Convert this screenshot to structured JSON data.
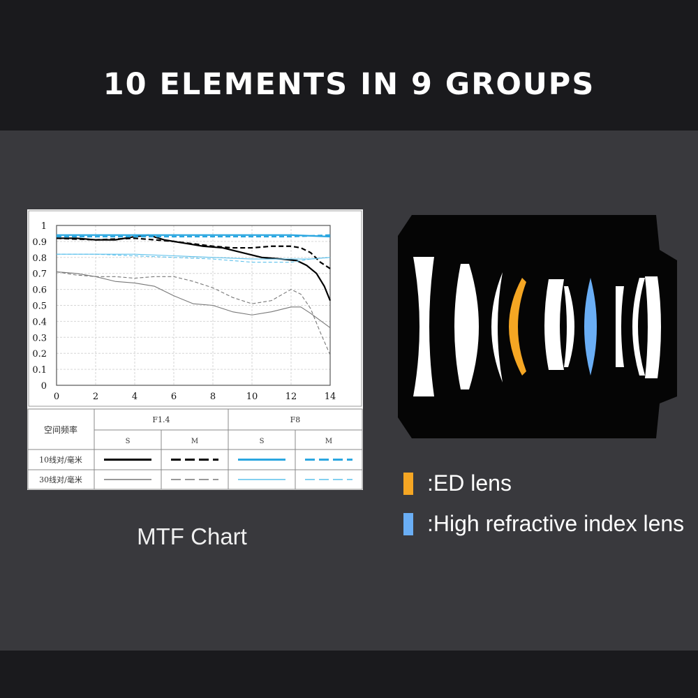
{
  "headline": "10 ELEMENTS IN 9 GROUPS",
  "caption": "MTF Chart",
  "chart_data": {
    "type": "line",
    "title": "",
    "xlabel": "",
    "ylabel": "",
    "xlim": [
      0,
      14
    ],
    "ylim": [
      0,
      1
    ],
    "x_ticks": [
      0,
      2,
      4,
      6,
      8,
      10,
      12,
      14
    ],
    "y_ticks": [
      0,
      0.1,
      0.2,
      0.3,
      0.4,
      0.5,
      0.6,
      0.7,
      0.8,
      0.9,
      1
    ],
    "grid": true,
    "series": [
      {
        "group": "F1.4",
        "direction": "S",
        "freq": "10线对/毫米",
        "color": "#000000",
        "style": "solid",
        "weight": "bold",
        "x": [
          0,
          1,
          2,
          3,
          4,
          4.7,
          5.5,
          6.5,
          7.5,
          8.5,
          9.5,
          10.5,
          11.5,
          12.3,
          12.8,
          13.3,
          13.7,
          14
        ],
        "y": [
          0.92,
          0.92,
          0.91,
          0.91,
          0.93,
          0.94,
          0.91,
          0.89,
          0.87,
          0.86,
          0.83,
          0.8,
          0.79,
          0.78,
          0.75,
          0.7,
          0.62,
          0.53
        ]
      },
      {
        "group": "F1.4",
        "direction": "M",
        "freq": "10线对/毫米",
        "color": "#000000",
        "style": "dashed",
        "weight": "bold",
        "x": [
          0,
          2,
          4,
          6,
          8,
          9,
          10,
          11,
          12,
          12.5,
          13,
          13.5,
          14
        ],
        "y": [
          0.92,
          0.91,
          0.92,
          0.9,
          0.87,
          0.86,
          0.86,
          0.87,
          0.87,
          0.86,
          0.83,
          0.77,
          0.73
        ]
      },
      {
        "group": "F1.4",
        "direction": "S",
        "freq": "30线对/毫米",
        "color": "#777777",
        "style": "solid",
        "weight": "thin",
        "x": [
          0,
          1,
          2,
          3,
          4,
          5,
          6,
          7,
          8,
          9,
          10,
          11,
          12,
          12.5,
          13,
          14
        ],
        "y": [
          0.71,
          0.7,
          0.68,
          0.65,
          0.64,
          0.62,
          0.56,
          0.51,
          0.5,
          0.46,
          0.44,
          0.46,
          0.49,
          0.49,
          0.45,
          0.36
        ]
      },
      {
        "group": "F1.4",
        "direction": "M",
        "freq": "30线对/毫米",
        "color": "#777777",
        "style": "dashed",
        "weight": "thin",
        "x": [
          0,
          1,
          2,
          3,
          4,
          5,
          6,
          7,
          8,
          9,
          10,
          11,
          12,
          12.5,
          13,
          13.5,
          14
        ],
        "y": [
          0.71,
          0.69,
          0.68,
          0.68,
          0.67,
          0.68,
          0.68,
          0.65,
          0.61,
          0.55,
          0.51,
          0.53,
          0.6,
          0.57,
          0.48,
          0.33,
          0.19
        ]
      },
      {
        "group": "F8",
        "direction": "S",
        "freq": "10线对/毫米",
        "color": "#2aa6e0",
        "style": "solid",
        "weight": "bold",
        "x": [
          0,
          2,
          4,
          6,
          8,
          10,
          12,
          14
        ],
        "y": [
          0.94,
          0.94,
          0.94,
          0.94,
          0.94,
          0.94,
          0.94,
          0.93
        ]
      },
      {
        "group": "F8",
        "direction": "M",
        "freq": "10线对/毫米",
        "color": "#2aa6e0",
        "style": "dashed",
        "weight": "bold",
        "x": [
          0,
          2,
          4,
          6,
          8,
          10,
          12,
          14
        ],
        "y": [
          0.93,
          0.93,
          0.93,
          0.93,
          0.93,
          0.93,
          0.93,
          0.94
        ]
      },
      {
        "group": "F8",
        "direction": "S",
        "freq": "30线对/毫米",
        "color": "#5bc0eb",
        "style": "solid",
        "weight": "thin",
        "x": [
          0,
          2,
          4,
          6,
          8,
          10,
          12,
          13,
          14
        ],
        "y": [
          0.82,
          0.82,
          0.82,
          0.81,
          0.8,
          0.79,
          0.79,
          0.79,
          0.8
        ]
      },
      {
        "group": "F8",
        "direction": "M",
        "freq": "30线对/毫米",
        "color": "#5bc0eb",
        "style": "dashed",
        "weight": "thin",
        "x": [
          0,
          2,
          4,
          6,
          8,
          10,
          12,
          13,
          14
        ],
        "y": [
          0.82,
          0.82,
          0.81,
          0.8,
          0.79,
          0.77,
          0.77,
          0.79,
          0.8
        ]
      }
    ]
  },
  "legend_table": {
    "header": "空间频率",
    "groups": [
      "F1.4",
      "F8"
    ],
    "sub_headers": [
      "S",
      "M",
      "S",
      "M"
    ],
    "rows": [
      "10线对/毫米",
      "30线对/毫米"
    ]
  },
  "lens_legend": [
    {
      "label": ":ED lens",
      "color": "#f5a623"
    },
    {
      "label": ":High refractive index lens",
      "color": "#6aaef5"
    }
  ]
}
